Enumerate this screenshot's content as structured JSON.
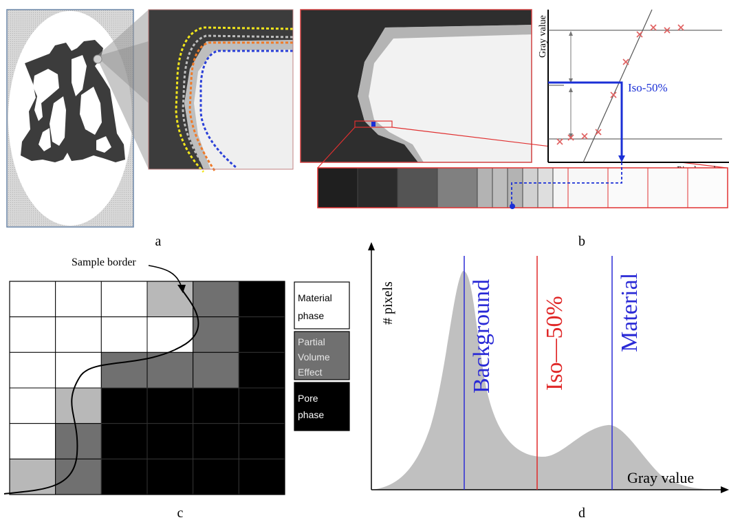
{
  "panels": {
    "a": {
      "label": "a"
    },
    "b": {
      "label": "b",
      "y_axis_label": "Gray value",
      "x_axis_label": "Pixelnumber",
      "iso_label": "Iso-50%",
      "strip_gray_levels": [
        0.12,
        0.17,
        0.33,
        0.5,
        0.7,
        0.74,
        0.7,
        0.82,
        0.87,
        0.96,
        0.97,
        0.98,
        0.98,
        0.99
      ],
      "colors": {
        "iso_line": "#1a2fd6",
        "profile_marker": "#e06060",
        "frame_red": "#e03030"
      }
    },
    "c": {
      "label": "c",
      "sample_border_label": "Sample border",
      "legend": {
        "material": [
          "Material",
          "phase"
        ],
        "partial": [
          "Partial",
          "Volume",
          "Effect"
        ],
        "pore": [
          "Pore",
          "phase"
        ]
      },
      "grid_levels": [
        [
          "white",
          "white",
          "white",
          "light",
          "dark",
          "black"
        ],
        [
          "white",
          "white",
          "white",
          "white",
          "dark",
          "black"
        ],
        [
          "white",
          "white",
          "dark",
          "dark",
          "dark",
          "black"
        ],
        [
          "white",
          "light",
          "black",
          "black",
          "black",
          "black"
        ],
        [
          "white",
          "dark",
          "black",
          "black",
          "black",
          "black"
        ],
        [
          "light",
          "dark",
          "black",
          "black",
          "black",
          "black"
        ]
      ],
      "colors": {
        "white": "#ffffff",
        "light": "#b8b8b8",
        "dark": "#707070",
        "black": "#000000"
      }
    },
    "d": {
      "label": "d",
      "y_axis_label": "# pixels",
      "x_axis_label": "Gray value",
      "lines": [
        {
          "label": "Background",
          "color": "#2a2ad6"
        },
        {
          "label": "Iso—50%",
          "color": "#e02828"
        },
        {
          "label": "Material",
          "color": "#2a2ad6"
        }
      ],
      "histogram_color": "#c0c0c0"
    }
  }
}
